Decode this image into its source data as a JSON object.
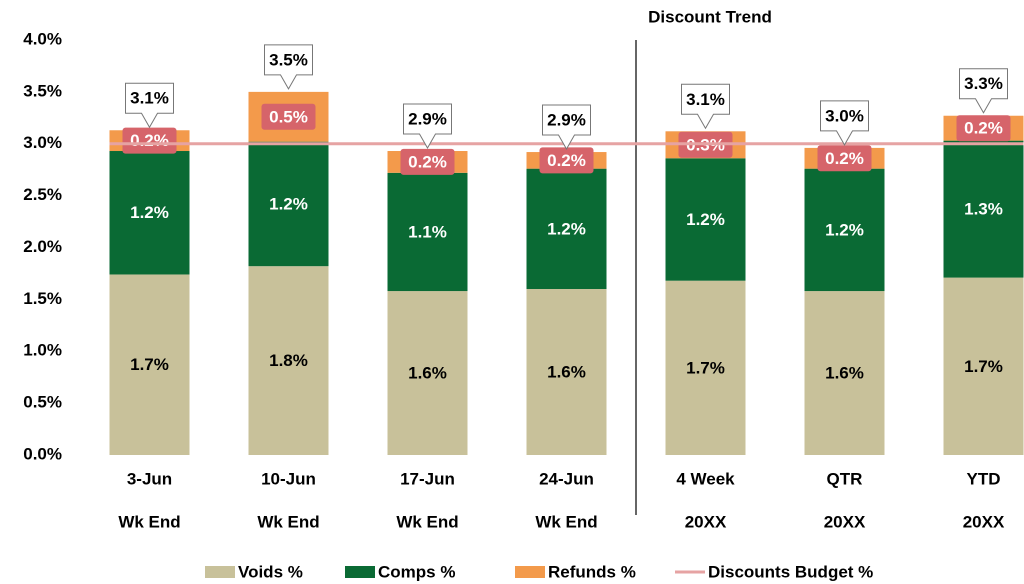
{
  "chart_data": {
    "type": "stacked_bar",
    "title": "Discount Trend",
    "categories": [
      [
        "3-Jun",
        "Wk End"
      ],
      [
        "10-Jun",
        "Wk End"
      ],
      [
        "17-Jun",
        "Wk End"
      ],
      [
        "24-Jun",
        "Wk End"
      ],
      [
        "4 Week",
        "20XX"
      ],
      [
        "QTR",
        "20XX"
      ],
      [
        "YTD",
        "20XX"
      ]
    ],
    "series": [
      {
        "name": "Voids %",
        "color": "#c8c19a",
        "values": [
          1.74,
          1.82,
          1.58,
          1.6,
          1.68,
          1.58,
          1.71
        ],
        "value_labels": [
          "1.7%",
          "1.8%",
          "1.6%",
          "1.6%",
          "1.7%",
          "1.6%",
          "1.7%"
        ]
      },
      {
        "name": "Comps %",
        "color": "#0a6a34",
        "values": [
          1.19,
          1.2,
          1.14,
          1.16,
          1.18,
          1.18,
          1.32
        ],
        "value_labels": [
          "1.2%",
          "1.2%",
          "1.1%",
          "1.2%",
          "1.2%",
          "1.2%",
          "1.3%"
        ]
      },
      {
        "name": "Refunds %",
        "color": "#f39a4b",
        "values": [
          0.2,
          0.48,
          0.21,
          0.16,
          0.26,
          0.2,
          0.24
        ],
        "value_labels": [
          "0.2%",
          "0.5%",
          "0.2%",
          "0.2%",
          "0.3%",
          "0.2%",
          "0.2%"
        ]
      },
      {
        "name": "Discounts Budget %",
        "type": "line",
        "color": "#e6a3a3",
        "values": [
          3.0,
          3.0,
          3.0,
          3.0,
          3.0,
          3.0,
          3.0
        ]
      }
    ],
    "totals": {
      "values": [
        3.13,
        3.5,
        2.93,
        2.92,
        3.12,
        2.96,
        3.27
      ],
      "value_labels": [
        "3.1%",
        "3.5%",
        "2.9%",
        "2.9%",
        "3.1%",
        "3.0%",
        "3.3%"
      ]
    },
    "ylim": [
      0,
      4
    ],
    "yticks": [
      {
        "value": 0,
        "label": "0.0%"
      },
      {
        "value": 0.5,
        "label": "0.5%"
      },
      {
        "value": 1,
        "label": "1.0%"
      },
      {
        "value": 1.5,
        "label": "1.5%"
      },
      {
        "value": 2,
        "label": "2.0%"
      },
      {
        "value": 2.5,
        "label": "2.5%"
      },
      {
        "value": 3,
        "label": "3.0%"
      },
      {
        "value": 3.5,
        "label": "3.5%"
      },
      {
        "value": 4,
        "label": "4.0%"
      }
    ],
    "legend": "bottom"
  }
}
